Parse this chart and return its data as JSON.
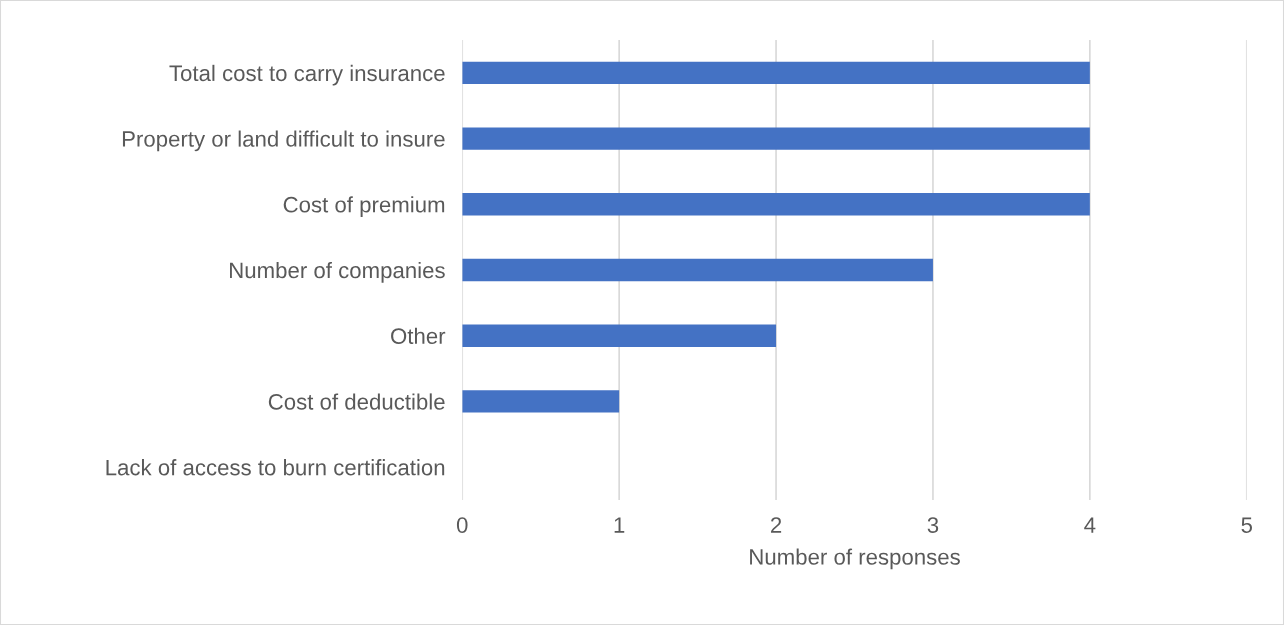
{
  "chart_data": {
    "type": "bar",
    "orientation": "horizontal",
    "xlabel": "Number of responses",
    "categories": [
      "Total cost to carry insurance",
      "Property or land difficult to insure",
      "Cost of premium",
      "Number of companies",
      "Other",
      "Cost of deductible",
      "Lack of access to burn certification"
    ],
    "values": [
      4,
      4,
      4,
      3,
      2,
      1,
      0
    ],
    "color": "#4472c4",
    "xlim": [
      0,
      5
    ],
    "xticks": [
      0,
      1,
      2,
      3,
      4,
      5
    ],
    "grid": "x",
    "legend": false
  }
}
